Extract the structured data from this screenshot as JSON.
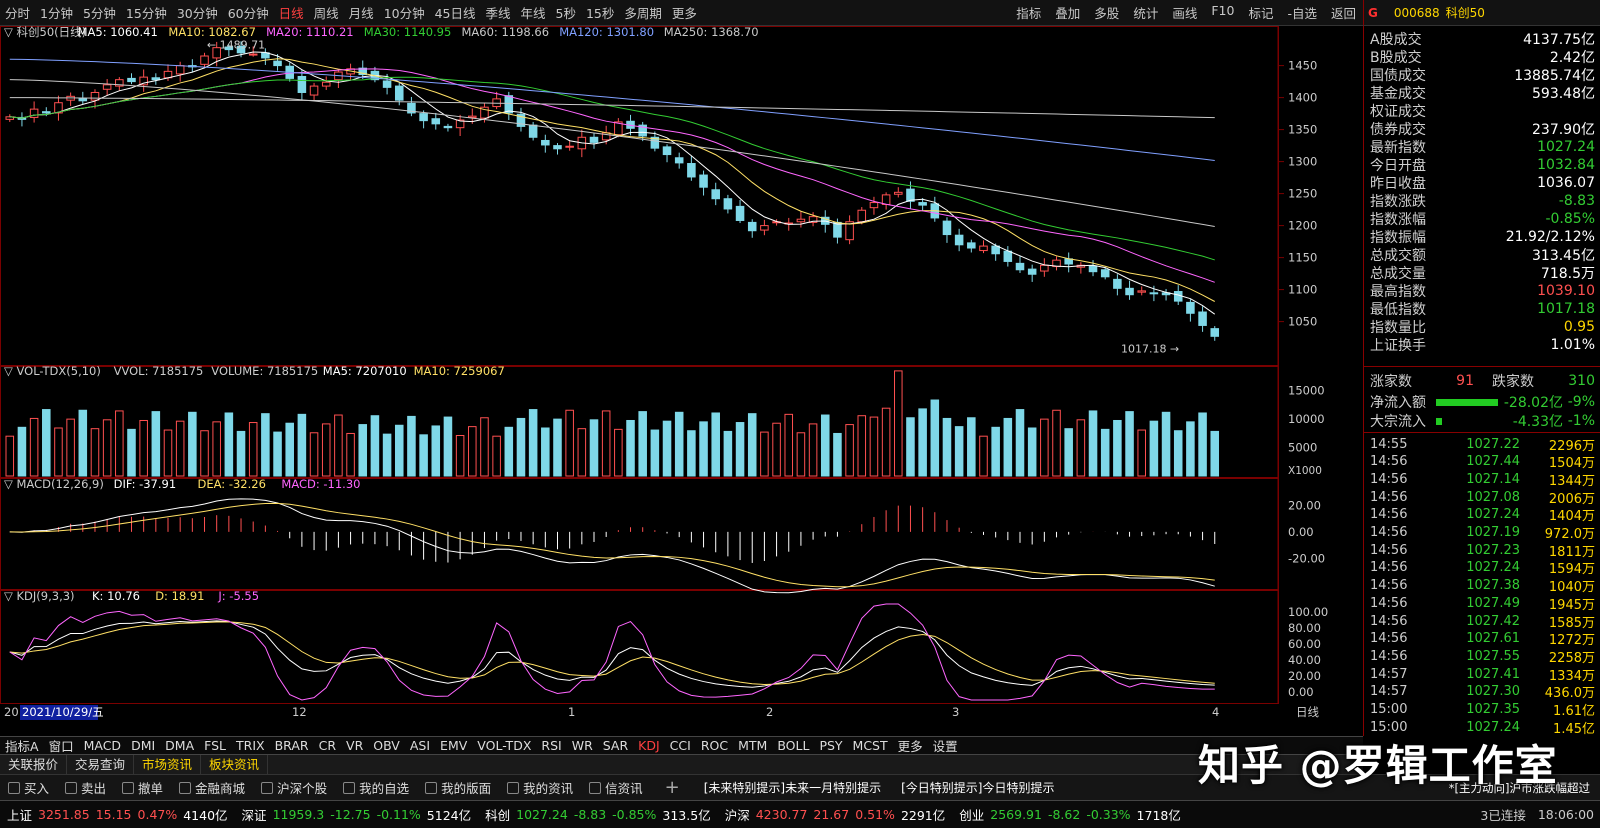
{
  "topbar": {
    "periods": [
      "分时",
      "1分钟",
      "5分钟",
      "15分钟",
      "30分钟",
      "60分钟",
      "日线",
      "周线",
      "月线",
      "10分钟",
      "45日线",
      "季线",
      "年线",
      "5秒",
      "15秒",
      "多周期",
      "更多"
    ],
    "active": "日线",
    "right": [
      "指标",
      "叠加",
      "多股",
      "统计",
      "画线",
      "F10",
      "标记",
      "-自选",
      "返回"
    ]
  },
  "title": {
    "g": "G",
    "code": "000688",
    "name": "科创50"
  },
  "main_chart": {
    "label": "科创50(日线)",
    "ma": [
      {
        "t": "MA5: 1060.41",
        "c": "#ffffff"
      },
      {
        "t": "MA10: 1082.67",
        "c": "#ffe066"
      },
      {
        "t": "MA20: 1110.21",
        "c": "#ff66ff"
      },
      {
        "t": "MA30: 1140.95",
        "c": "#33cc33"
      },
      {
        "t": "MA60: 1198.66",
        "c": "#c8c8c8"
      },
      {
        "t": "MA120: 1301.80",
        "c": "#80a0ff"
      },
      {
        "t": "MA250: 1368.70",
        "c": "#c8c8c8"
      }
    ],
    "high_label": "1489.71",
    "low_label": "1017.18",
    "y_ticks": [
      1450,
      1400,
      1350,
      1300,
      1250,
      1200,
      1150,
      1100,
      1050
    ],
    "ylim": [
      990,
      1490
    ]
  },
  "vol_chart": {
    "label": "VOL-TDX(5,10)",
    "vals": [
      "VVOL: 7185175",
      "VOLUME: 7185175",
      "MA5: 7207010",
      "MA10: 7259067"
    ],
    "y_ticks": [
      15000,
      10000,
      5000
    ],
    "unit": "X1000"
  },
  "macd_chart": {
    "label": "MACD(12,26,9)",
    "vals": [
      "DIF: -37.91",
      "DEA: -32.26",
      "MACD: -11.30"
    ],
    "y_ticks": [
      "20.00",
      "0.00",
      "-20.00"
    ]
  },
  "kdj_chart": {
    "label": "KDJ(9,3,3)",
    "vals": [
      "K: 10.76",
      "D: 18.91",
      "J: -5.55"
    ],
    "y_ticks": [
      "100.00",
      "80.00",
      "60.00",
      "40.00",
      "20.00",
      "0.00"
    ]
  },
  "date_axis": {
    "start": "20",
    "date": "2021/10/29/五",
    "m12": "12",
    "m1": "1",
    "m2": "2",
    "m3": "3",
    "m4": "4",
    "right": "日线"
  },
  "right_panel": {
    "stats": [
      {
        "k": "A股成交",
        "v": "4137.75亿",
        "c": "wt"
      },
      {
        "k": "B股成交",
        "v": "2.42亿",
        "c": "wt"
      },
      {
        "k": "国债成交",
        "v": "13885.74亿",
        "c": "wt"
      },
      {
        "k": "基金成交",
        "v": "593.48亿",
        "c": "wt"
      },
      {
        "k": "权证成交",
        "v": "",
        "c": "wt"
      },
      {
        "k": "债券成交",
        "v": "237.90亿",
        "c": "wt"
      },
      {
        "k": "最新指数",
        "v": "1027.24",
        "c": "dn"
      },
      {
        "k": "今日开盘",
        "v": "1032.84",
        "c": "dn"
      },
      {
        "k": "昨日收盘",
        "v": "1036.07",
        "c": "wt"
      },
      {
        "k": "指数涨跌",
        "v": "-8.83",
        "c": "dn"
      },
      {
        "k": "指数涨幅",
        "v": "-0.85%",
        "c": "dn"
      },
      {
        "k": "指数振幅",
        "v": "21.92/2.12%",
        "c": "wt"
      },
      {
        "k": "总成交额",
        "v": "313.45亿",
        "c": "wt"
      },
      {
        "k": "总成交量",
        "v": "718.5万",
        "c": "wt"
      },
      {
        "k": "最高指数",
        "v": "1039.10",
        "c": "up"
      },
      {
        "k": "最低指数",
        "v": "1017.18",
        "c": "dn"
      },
      {
        "k": "指数量比",
        "v": "0.95",
        "c": "yl"
      },
      {
        "k": "上证换手",
        "v": "1.01%",
        "c": "wt"
      }
    ],
    "rise_label": "涨家数",
    "rise": "91",
    "fall_label": "跌家数",
    "fall": "310",
    "flow": [
      {
        "k": "净流入额",
        "v": "-28.02亿",
        "p": "-9%"
      },
      {
        "k": "大宗流入",
        "v": "-4.33亿",
        "p": "-1%"
      }
    ],
    "ticks": [
      {
        "t": "14:55",
        "p": "1027.22",
        "v": "2296万"
      },
      {
        "t": "14:56",
        "p": "1027.44",
        "v": "1504万"
      },
      {
        "t": "14:56",
        "p": "1027.14",
        "v": "1344万"
      },
      {
        "t": "14:56",
        "p": "1027.08",
        "v": "2006万"
      },
      {
        "t": "14:56",
        "p": "1027.24",
        "v": "1404万"
      },
      {
        "t": "14:56",
        "p": "1027.19",
        "v": "972.0万"
      },
      {
        "t": "14:56",
        "p": "1027.23",
        "v": "1811万"
      },
      {
        "t": "14:56",
        "p": "1027.24",
        "v": "1594万"
      },
      {
        "t": "14:56",
        "p": "1027.38",
        "v": "1040万"
      },
      {
        "t": "14:56",
        "p": "1027.49",
        "v": "1945万"
      },
      {
        "t": "14:56",
        "p": "1027.42",
        "v": "1585万"
      },
      {
        "t": "14:56",
        "p": "1027.61",
        "v": "1272万"
      },
      {
        "t": "14:56",
        "p": "1027.55",
        "v": "2258万"
      },
      {
        "t": "14:57",
        "p": "1027.41",
        "v": "1334万"
      },
      {
        "t": "14:57",
        "p": "1027.30",
        "v": "436.0万"
      },
      {
        "t": "15:00",
        "p": "1027.35",
        "v": "1.61亿"
      },
      {
        "t": "15:00",
        "p": "1027.24",
        "v": "1.45亿"
      }
    ]
  },
  "indicator_tabs": [
    "指标A",
    "窗口",
    "MACD",
    "DMI",
    "DMA",
    "FSL",
    "TRIX",
    "BRAR",
    "CR",
    "VR",
    "OBV",
    "ASI",
    "EMV",
    "VOL-TDX",
    "RSI",
    "WR",
    "SAR",
    "KDJ",
    "CCI",
    "ROC",
    "MTM",
    "BOLL",
    "PSY",
    "MCST",
    "更多",
    "设置"
  ],
  "indicator_active": "KDJ",
  "bottom_tabs": [
    "关联报价",
    "交易查询",
    "市场资讯",
    "板块资讯"
  ],
  "bottom_tabs_hl": [
    "市场资讯",
    "板块资讯"
  ],
  "toolbar": [
    "买入",
    "卖出",
    "撤单",
    "金融商城",
    "沪深个股",
    "我的自选",
    "我的版面",
    "我的资讯",
    "信资讯"
  ],
  "messages": [
    "[未来特别提示]未来一月特别提示",
    "[今日特别提示]今日特别提示",
    "*[主力动向]沪市涨跌幅超过"
  ],
  "status": [
    {
      "n": "上证",
      "p": "3251.85",
      "c": "15.15",
      "pct": "0.47%",
      "a": "4140亿",
      "dir": "up"
    },
    {
      "n": "深证",
      "p": "11959.3",
      "c": "-12.75",
      "pct": "-0.11%",
      "a": "5124亿",
      "dir": "dn"
    },
    {
      "n": "科创",
      "p": "1027.24",
      "c": "-8.83",
      "pct": "-0.85%",
      "a": "313.5亿",
      "dir": "dn"
    },
    {
      "n": "沪深",
      "p": "4230.77",
      "c": "21.67",
      "pct": "0.51%",
      "a": "2291亿",
      "dir": "up"
    },
    {
      "n": "创业",
      "p": "2569.91",
      "c": "-8.62",
      "pct": "-0.33%",
      "a": "1718亿",
      "dir": "dn"
    }
  ],
  "status_conn": "3已连接",
  "status_time": "18:06:00",
  "watermark": "知乎 @罗辑工作室",
  "chart_data": {
    "type": "candlestick",
    "ylim": [
      990,
      1490
    ],
    "closes": [
      1370,
      1366,
      1382,
      1376,
      1392,
      1402,
      1395,
      1408,
      1420,
      1428,
      1425,
      1432,
      1428,
      1441,
      1450,
      1448,
      1465,
      1478,
      1475,
      1470,
      1468,
      1462,
      1450,
      1430,
      1408,
      1418,
      1424,
      1440,
      1445,
      1436,
      1428,
      1416,
      1396,
      1376,
      1364,
      1359,
      1353,
      1365,
      1371,
      1385,
      1398,
      1376,
      1355,
      1338,
      1326,
      1320,
      1324,
      1338,
      1330,
      1345,
      1362,
      1352,
      1340,
      1321,
      1311,
      1298,
      1276,
      1260,
      1242,
      1226,
      1208,
      1192,
      1200,
      1206,
      1204,
      1210,
      1214,
      1202,
      1182,
      1206,
      1224,
      1236,
      1248,
      1252,
      1238,
      1232,
      1212,
      1186,
      1170,
      1165,
      1168,
      1156,
      1144,
      1131,
      1124,
      1138,
      1146,
      1140,
      1138,
      1128,
      1120,
      1102,
      1092,
      1098,
      1094,
      1092,
      1082,
      1063,
      1044,
      1027
    ],
    "ma250_end": 1368.7,
    "vol_ylim": [
      0,
      16000
    ],
    "macd_ylim": [
      -40,
      30
    ],
    "kdj_ylim": [
      -10,
      110
    ]
  }
}
